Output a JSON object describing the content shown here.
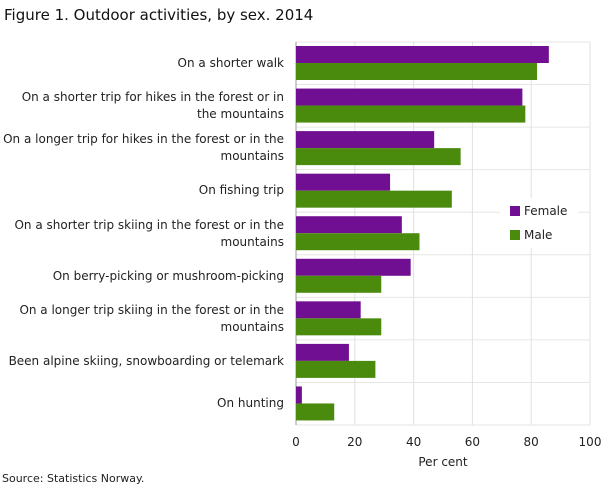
{
  "chart_data": {
    "type": "barh",
    "title": "Figure 1. Outdoor activities, by sex. 2014",
    "source": "Source: Statistics Norway.",
    "x_label": "Per cent",
    "categories": [
      "On a shorter walk",
      "On a shorter trip for hikes in the forest or in the mountains",
      "On a longer trip for hikes in the forest or in the mountains",
      "On fishing trip",
      "On a shorter trip skiing in the forest or in the mountains",
      "On berry-picking or mushroom-picking",
      "On a longer trip skiing in the forest or in the mountains",
      "Been alpine skiing, snowboarding or telemark",
      "On hunting"
    ],
    "series": [
      {
        "name": "Female",
        "color": "#700f91",
        "values": [
          86,
          77,
          47,
          32,
          36,
          39,
          22,
          18,
          2
        ]
      },
      {
        "name": "Male",
        "color": "#4a8a0d",
        "values": [
          82,
          78,
          56,
          53,
          42,
          29,
          29,
          27,
          13
        ]
      }
    ],
    "xlim": [
      0,
      100
    ],
    "xticks": [
      0,
      20,
      40,
      60,
      80,
      100
    ],
    "grid": true,
    "legend": "right"
  }
}
